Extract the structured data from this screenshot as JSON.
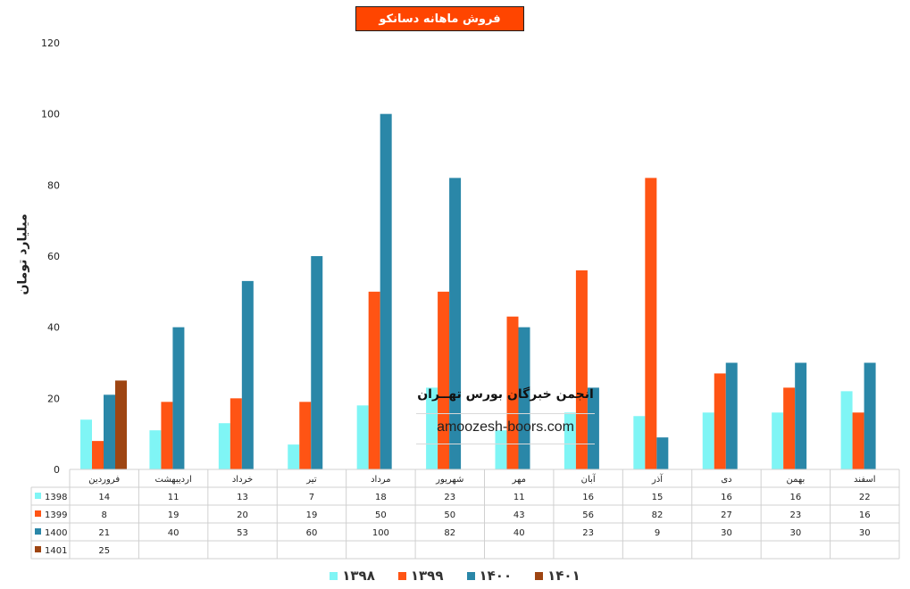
{
  "title": "فروش ماهانه دسانکو",
  "y_axis_title": "میلیارد تومان",
  "watermark": {
    "title": "انجمن خبرگان بورس تهــران",
    "url": "amoozesh-boors.com"
  },
  "legend": [
    {
      "label": "۱۳۹۸",
      "color": "#7ff5f5"
    },
    {
      "label": "۱۳۹۹",
      "color": "#ff5414"
    },
    {
      "label": "۱۴۰۰",
      "color": "#2a87a8"
    },
    {
      "label": "۱۴۰۱",
      "color": "#9e4512"
    }
  ],
  "chart_data": {
    "type": "bar",
    "ylim": [
      0,
      120
    ],
    "yticks": [
      0,
      20,
      40,
      60,
      80,
      100,
      120
    ],
    "ylabel": "میلیارد تومان",
    "categories": [
      "فروردین",
      "اردیبهشت",
      "خرداد",
      "تیر",
      "مرداد",
      "شهریور",
      "مهر",
      "آبان",
      "آذر",
      "دی",
      "بهمن",
      "اسفند"
    ],
    "series": [
      {
        "name": "1398",
        "color": "#7ff5f5",
        "values": [
          14,
          11,
          13,
          7,
          18,
          23,
          11,
          16,
          15,
          16,
          16,
          22
        ]
      },
      {
        "name": "1399",
        "color": "#ff5414",
        "values": [
          8,
          19,
          20,
          19,
          50,
          50,
          43,
          56,
          82,
          27,
          23,
          16
        ]
      },
      {
        "name": "1400",
        "color": "#2a87a8",
        "values": [
          21,
          40,
          53,
          60,
          100,
          82,
          40,
          23,
          9,
          30,
          30,
          30
        ]
      },
      {
        "name": "1401",
        "color": "#9e4512",
        "values": [
          25,
          null,
          null,
          null,
          null,
          null,
          null,
          null,
          null,
          null,
          null,
          null
        ]
      }
    ],
    "grid": false,
    "legend_position": "bottom",
    "data_table": true
  }
}
